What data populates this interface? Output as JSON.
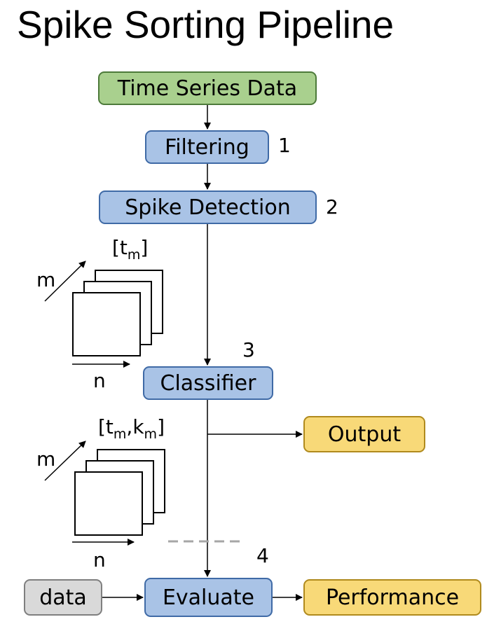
{
  "title": "Spike Sorting Pipeline",
  "nodes": {
    "time_series": "Time Series Data",
    "filtering": "Filtering",
    "spike_detection": "Spike Detection",
    "classifier": "Classifier",
    "output": "Output",
    "data": "data",
    "evaluate": "Evaluate",
    "performance": "Performance"
  },
  "steps": {
    "filtering": "1",
    "spike_detection": "2",
    "classifier": "3",
    "evaluate": "4"
  },
  "stack1": {
    "label_base": "[t",
    "label_sub": "m",
    "label_end": "]",
    "depth_axis": "m",
    "width_axis": "n"
  },
  "stack2": {
    "label_base": "[t",
    "label_sub1": "m",
    "label_mid": ",k",
    "label_sub2": "m",
    "label_end": "]",
    "depth_axis": "m",
    "width_axis": "n"
  },
  "colors": {
    "process": "#a9c3e6",
    "input": "#a9d08e",
    "result": "#f8d978",
    "external": "#d9d9d9"
  }
}
